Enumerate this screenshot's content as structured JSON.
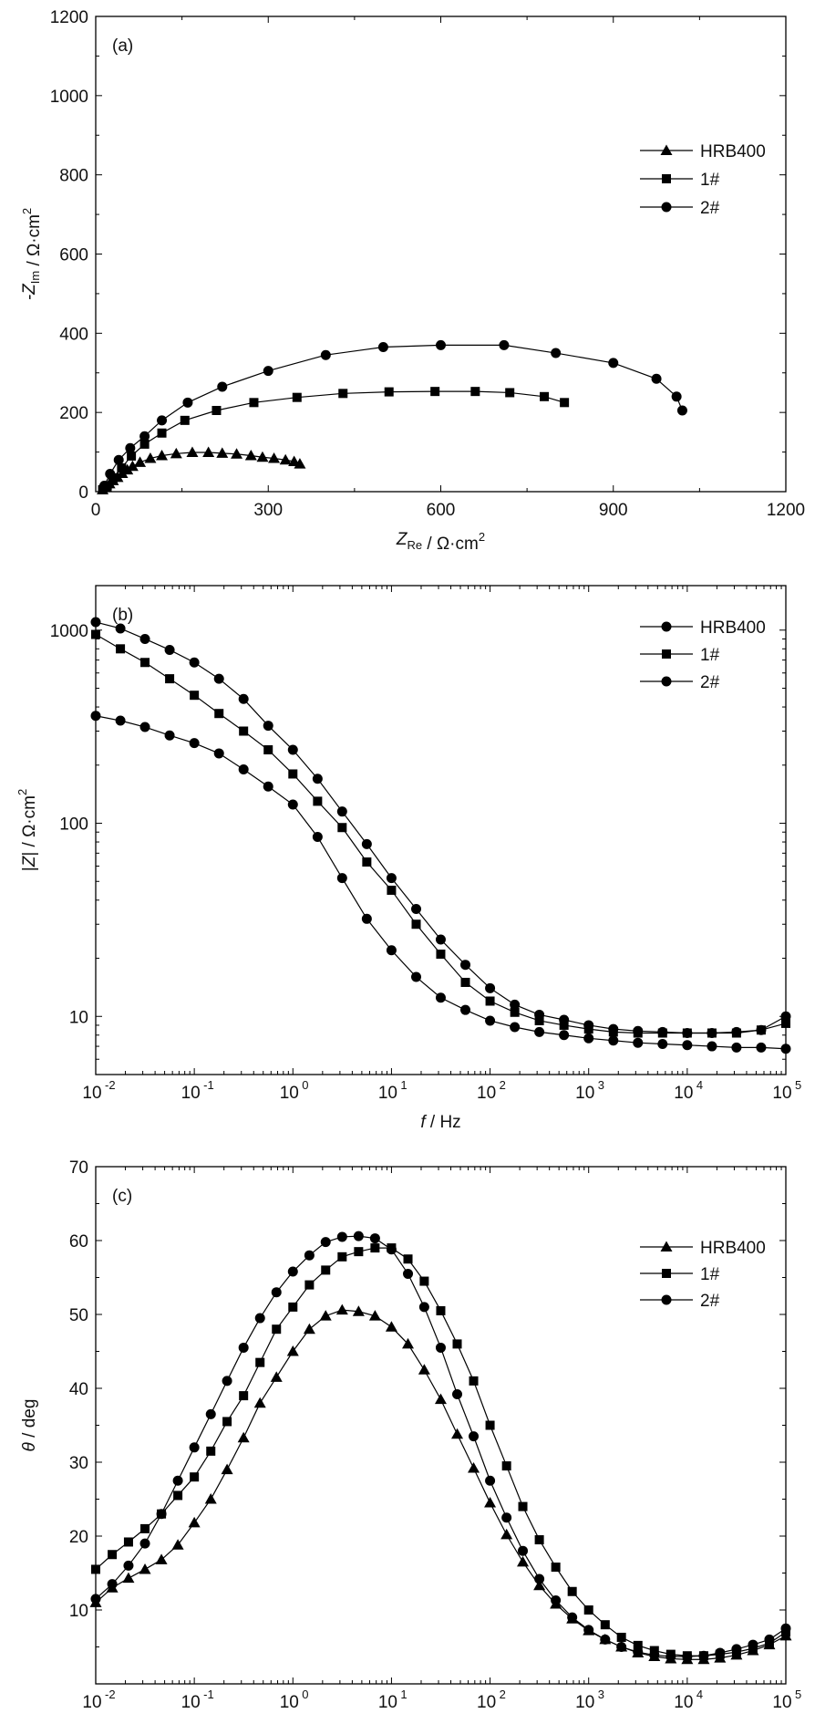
{
  "chart_data": [
    {
      "type": "scatter",
      "panel_label": "(a)",
      "xlabel": "Z_Re / Ω·cm²",
      "ylabel": "-Z_Im / Ω·cm²",
      "xscale": "linear",
      "yscale": "linear",
      "xlim": [
        0,
        1200
      ],
      "ylim": [
        0,
        1200
      ],
      "xticks": [
        "0",
        "300",
        "600",
        "900",
        "1200"
      ],
      "yticks": [
        "0",
        "200",
        "400",
        "600",
        "800",
        "1000",
        "1200"
      ],
      "legend": {
        "position": "top-right"
      },
      "grid": false,
      "series": [
        {
          "name": "HRB400",
          "marker": "triangle",
          "x": [
            12,
            18,
            24,
            30,
            38,
            46,
            55,
            64,
            77,
            95,
            115,
            140,
            168,
            196,
            220,
            245,
            270,
            290,
            310,
            330,
            345,
            355
          ],
          "y": [
            5,
            12,
            20,
            28,
            36,
            46,
            55,
            64,
            74,
            84,
            91,
            96,
            99,
            99,
            97,
            95,
            91,
            87,
            84,
            80,
            76,
            70
          ]
        },
        {
          "name": "1#",
          "marker": "square",
          "x": [
            12,
            20,
            30,
            45,
            62,
            85,
            115,
            155,
            210,
            275,
            350,
            430,
            510,
            590,
            660,
            720,
            780,
            815
          ],
          "y": [
            5,
            15,
            35,
            60,
            90,
            120,
            148,
            180,
            205,
            225,
            238,
            248,
            252,
            253,
            253,
            250,
            240,
            225
          ]
        },
        {
          "name": "2#",
          "marker": "circle",
          "x": [
            15,
            25,
            40,
            60,
            85,
            115,
            160,
            220,
            300,
            400,
            500,
            600,
            710,
            800,
            900,
            975,
            1010,
            1020
          ],
          "y": [
            15,
            45,
            80,
            110,
            140,
            180,
            225,
            265,
            305,
            345,
            365,
            370,
            370,
            350,
            325,
            285,
            240,
            205
          ]
        }
      ]
    },
    {
      "type": "line",
      "panel_label": "(b)",
      "xlabel": "f / Hz",
      "ylabel": "|Z| / Ω·cm²",
      "xscale": "log",
      "yscale": "log",
      "xlim": [
        0.01,
        100000
      ],
      "ylim": [
        5,
        1700
      ],
      "xticks": [
        "10^-2",
        "10^-1",
        "10^0",
        "10^1",
        "10^2",
        "10^3",
        "10^4",
        "10^5"
      ],
      "yticks": [
        "10",
        "100",
        "1000"
      ],
      "legend": {
        "position": "top-right"
      },
      "grid": false,
      "series": [
        {
          "name": "HRB400",
          "marker": "circle",
          "x": [
            0.01,
            0.0178,
            0.0316,
            0.0562,
            0.1,
            0.178,
            0.316,
            0.562,
            1,
            1.78,
            3.16,
            5.62,
            10,
            17.8,
            31.6,
            56.2,
            100,
            178,
            316,
            562,
            1000,
            1780,
            3160,
            5620,
            10000,
            17800,
            31600,
            56200,
            100000
          ],
          "y": [
            360,
            340,
            315,
            285,
            260,
            230,
            190,
            155,
            125,
            85,
            52,
            32,
            22,
            16,
            12.5,
            10.8,
            9.5,
            8.8,
            8.3,
            8.0,
            7.7,
            7.5,
            7.3,
            7.2,
            7.1,
            7.0,
            6.9,
            6.9,
            6.8
          ]
        },
        {
          "name": "1#",
          "marker": "square",
          "x": [
            0.01,
            0.0178,
            0.0316,
            0.0562,
            0.1,
            0.178,
            0.316,
            0.562,
            1,
            1.78,
            3.16,
            5.62,
            10,
            17.8,
            31.6,
            56.2,
            100,
            178,
            316,
            562,
            1000,
            1780,
            3160,
            5620,
            10000,
            17800,
            31600,
            56200,
            100000
          ],
          "y": [
            950,
            800,
            680,
            560,
            460,
            370,
            300,
            240,
            180,
            130,
            95,
            63,
            45,
            30,
            21,
            15,
            12,
            10.5,
            9.5,
            9,
            8.6,
            8.3,
            8.2,
            8.2,
            8.2,
            8.2,
            8.2,
            8.5,
            9.2
          ]
        },
        {
          "name": "2#",
          "marker": "circle",
          "x": [
            0.01,
            0.0178,
            0.0316,
            0.0562,
            0.1,
            0.178,
            0.316,
            0.562,
            1,
            1.78,
            3.16,
            5.62,
            10,
            17.8,
            31.6,
            56.2,
            100,
            178,
            316,
            562,
            1000,
            1780,
            3160,
            5620,
            10000,
            17800,
            31600,
            56200,
            100000
          ],
          "y": [
            1100,
            1020,
            900,
            790,
            680,
            560,
            440,
            320,
            240,
            170,
            115,
            78,
            52,
            36,
            25,
            18.5,
            14,
            11.5,
            10.2,
            9.6,
            9.0,
            8.6,
            8.4,
            8.3,
            8.2,
            8.2,
            8.3,
            8.5,
            10
          ]
        }
      ]
    },
    {
      "type": "line",
      "panel_label": "(c)",
      "xlabel": "f / Hz",
      "ylabel": "θ / deg",
      "xscale": "log",
      "yscale": "linear",
      "xlim": [
        0.01,
        100000
      ],
      "ylim": [
        0,
        70
      ],
      "xticks": [
        "10^-2",
        "10^-1",
        "10^0",
        "10^1",
        "10^2",
        "10^3",
        "10^4",
        "10^5"
      ],
      "yticks": [
        "10",
        "20",
        "30",
        "40",
        "50",
        "60",
        "70"
      ],
      "legend": {
        "position": "top-right"
      },
      "grid": false,
      "series": [
        {
          "name": "HRB400",
          "marker": "triangle",
          "x": [
            0.01,
            0.0147,
            0.0215,
            0.0316,
            0.0464,
            0.0681,
            0.1,
            0.147,
            0.215,
            0.316,
            0.464,
            0.681,
            1,
            1.47,
            2.15,
            3.16,
            4.64,
            6.81,
            10,
            14.7,
            21.5,
            31.6,
            46.4,
            68.1,
            100,
            147,
            215,
            316,
            464,
            681,
            1000,
            1470,
            2150,
            3160,
            4640,
            6810,
            10000,
            14700,
            21500,
            31600,
            46400,
            68100,
            100000
          ],
          "y": [
            11,
            13,
            14.3,
            15.5,
            16.8,
            18.8,
            21.8,
            25,
            29,
            33.3,
            38,
            41.5,
            45,
            48,
            49.8,
            50.6,
            50.4,
            49.8,
            48.3,
            46,
            42.5,
            38.5,
            33.8,
            29.2,
            24.5,
            20.2,
            16.5,
            13.3,
            10.8,
            8.8,
            7.2,
            6,
            5,
            4.2,
            3.7,
            3.4,
            3.3,
            3.3,
            3.5,
            3.9,
            4.5,
            5.3,
            6.5
          ]
        },
        {
          "name": "1#",
          "marker": "square",
          "x": [
            0.01,
            0.0147,
            0.0215,
            0.0316,
            0.0464,
            0.0681,
            0.1,
            0.147,
            0.215,
            0.316,
            0.464,
            0.681,
            1,
            1.47,
            2.15,
            3.16,
            4.64,
            6.81,
            10,
            14.7,
            21.5,
            31.6,
            46.4,
            68.1,
            100,
            147,
            215,
            316,
            464,
            681,
            1000,
            1470,
            2150,
            3160,
            4640,
            6810,
            10000,
            14700,
            21500,
            31600,
            46400,
            68100,
            100000
          ],
          "y": [
            15.5,
            17.5,
            19.2,
            21,
            23,
            25.5,
            28,
            31.5,
            35.5,
            39,
            43.5,
            48,
            51,
            54,
            56,
            57.8,
            58.5,
            59,
            59,
            57.5,
            54.5,
            50.5,
            46,
            41,
            35,
            29.5,
            24,
            19.5,
            15.8,
            12.5,
            10,
            8,
            6.3,
            5.2,
            4.5,
            4,
            3.8,
            3.8,
            4,
            4.3,
            4.8,
            5.5,
            7
          ]
        },
        {
          "name": "2#",
          "marker": "circle",
          "x": [
            0.01,
            0.0147,
            0.0215,
            0.0316,
            0.0464,
            0.0681,
            0.1,
            0.147,
            0.215,
            0.316,
            0.464,
            0.681,
            1,
            1.47,
            2.15,
            3.16,
            4.64,
            6.81,
            10,
            14.7,
            21.5,
            31.6,
            46.4,
            68.1,
            100,
            147,
            215,
            316,
            464,
            681,
            1000,
            1470,
            2150,
            3160,
            4640,
            6810,
            10000,
            14700,
            21500,
            31600,
            46400,
            68100,
            100000
          ],
          "y": [
            11.5,
            13.5,
            16,
            19,
            23,
            27.5,
            32,
            36.5,
            41,
            45.5,
            49.5,
            53,
            55.8,
            58,
            59.8,
            60.5,
            60.6,
            60.3,
            58.8,
            55.5,
            51,
            45.5,
            39.2,
            33.5,
            27.5,
            22.5,
            18,
            14.2,
            11.3,
            9,
            7.3,
            6,
            5,
            4.3,
            3.9,
            3.7,
            3.7,
            3.8,
            4.2,
            4.7,
            5.3,
            6,
            7.5
          ]
        }
      ]
    }
  ]
}
